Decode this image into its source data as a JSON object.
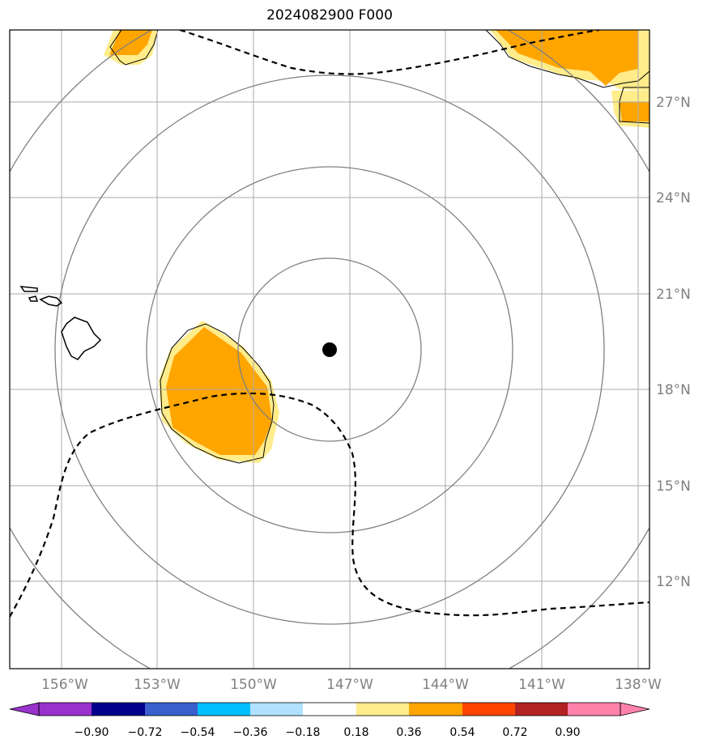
{
  "title": "2024082900 F000",
  "map": {
    "lon_range": [
      -158.2,
      -137.5
    ],
    "lat_range": [
      9.3,
      29.2
    ],
    "grid_lons": [
      -156,
      -153,
      -150,
      -147,
      -144,
      -141,
      -138
    ],
    "grid_lats": [
      12,
      15,
      18,
      21,
      24,
      27
    ],
    "lon_labels": [
      "156°W",
      "153°W",
      "150°W",
      "147°W",
      "144°W",
      "141°W",
      "138°W"
    ],
    "lat_labels": [
      "12°N",
      "15°N",
      "18°N",
      "21°N",
      "24°N",
      "27°N"
    ],
    "center_marker": {
      "lon": -148.0,
      "lat": 19.3
    },
    "range_ring_count": 4
  },
  "colorbar": {
    "levels": [
      "−0.90",
      "−0.72",
      "−0.54",
      "−0.36",
      "−0.18",
      "0.18",
      "0.36",
      "0.54",
      "0.72",
      "0.90"
    ],
    "colors": [
      "#9932cc",
      "#00008b",
      "#3a5fcd",
      "#00bfff",
      "#b0e2ff",
      "#ffffff",
      "#ffec8b",
      "#ffa500",
      "#ff4500",
      "#b22222",
      "#ff82ab"
    ]
  }
}
